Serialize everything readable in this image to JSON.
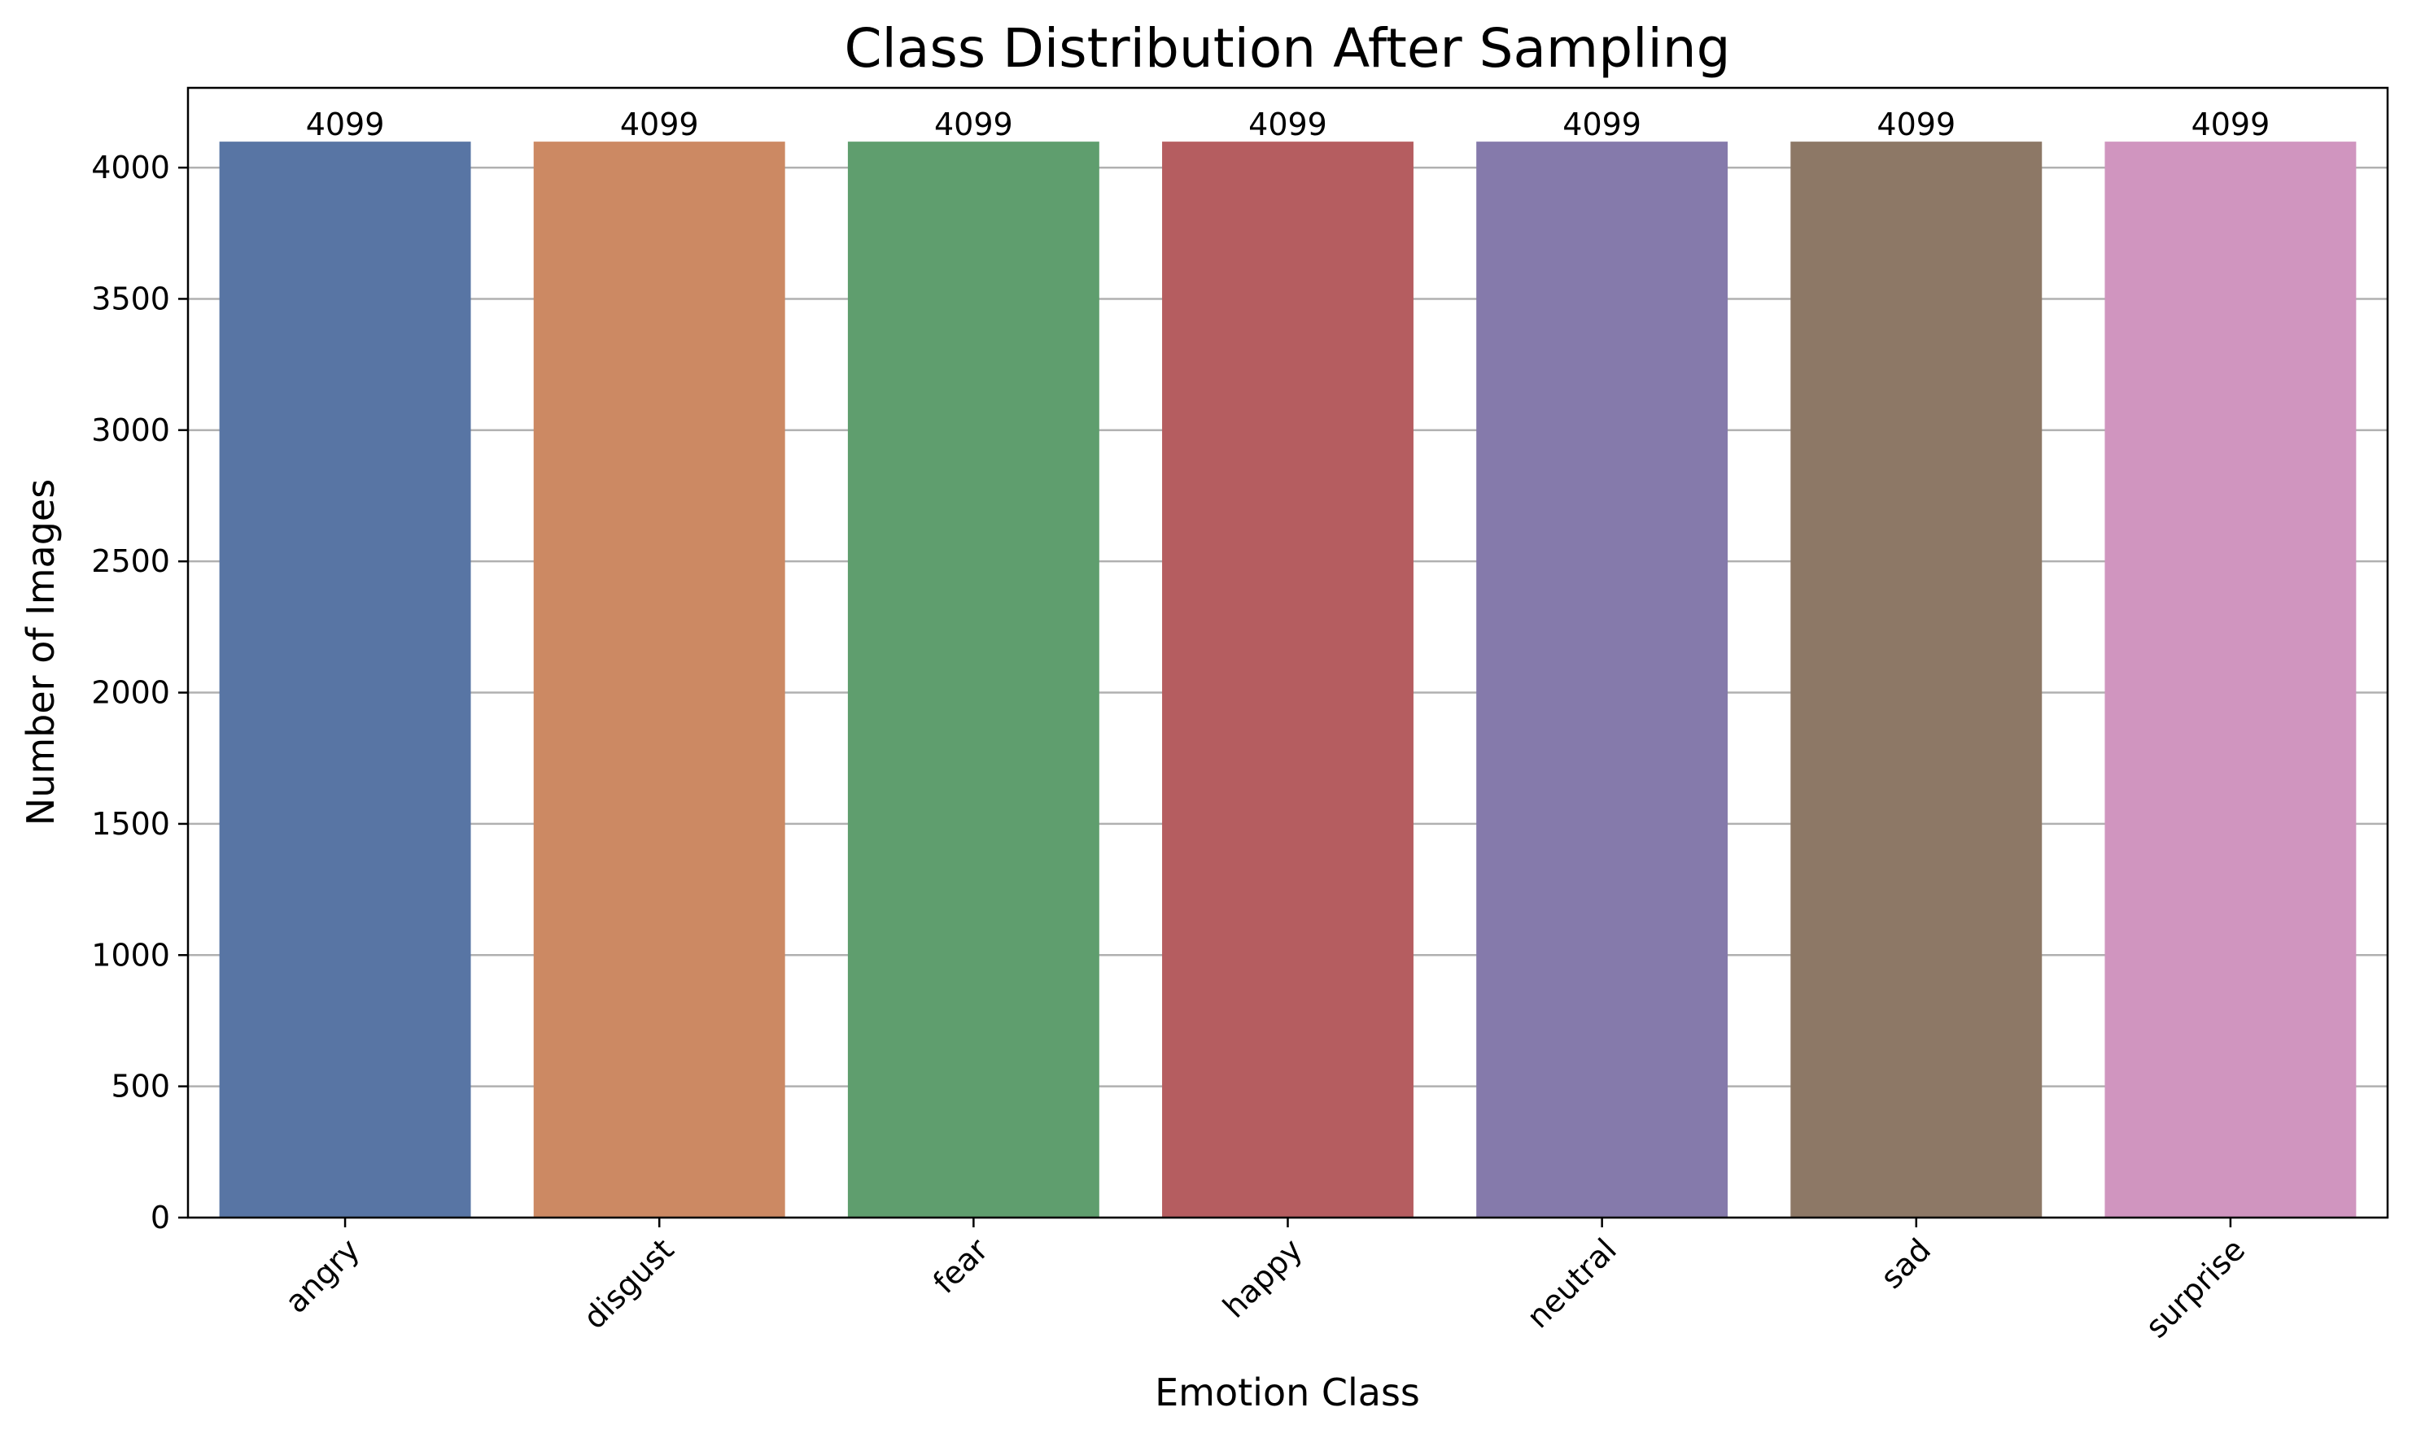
{
  "chart_data": {
    "type": "bar",
    "title": "Class Distribution After Sampling",
    "xlabel": "Emotion Class",
    "ylabel": "Number of Images",
    "categories": [
      "angry",
      "disgust",
      "fear",
      "happy",
      "neutral",
      "sad",
      "surprise"
    ],
    "values": [
      4099,
      4099,
      4099,
      4099,
      4099,
      4099,
      4099
    ],
    "data_labels": [
      "4099",
      "4099",
      "4099",
      "4099",
      "4099",
      "4099",
      "4099"
    ],
    "colors": [
      "#5875a4",
      "#cc8963",
      "#5f9e6e",
      "#b55d60",
      "#857aab",
      "#8d7866",
      "#d095bf"
    ],
    "ylim": [
      0,
      4303.95
    ],
    "yticks": [
      0,
      500,
      1000,
      1500,
      2000,
      2500,
      3000,
      3500,
      4000
    ],
    "ytick_labels": [
      "0",
      "500",
      "1000",
      "1500",
      "2000",
      "2500",
      "3000",
      "3500",
      "4000"
    ],
    "grid": "y",
    "x_tick_rotation": 45
  }
}
